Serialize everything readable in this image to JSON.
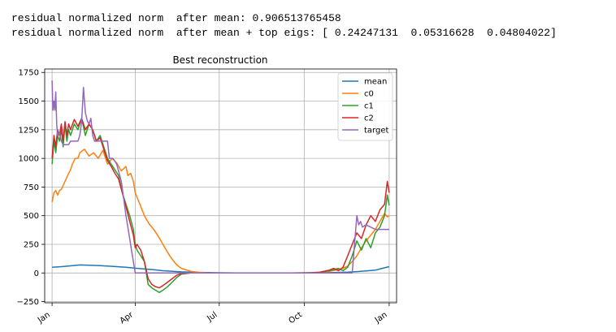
{
  "output": {
    "line1": "residual normalized norm  after mean: 0.906513765458",
    "line2": "residual normalized norm  after mean + top eigs: [ 0.24247131  0.05316628  0.04804022]"
  },
  "colors": {
    "mean": "#1f77b4",
    "c0": "#ff7f0e",
    "c1": "#2ca02c",
    "c2": "#d62728",
    "target": "#9467bd",
    "grid": "#b0b0b0"
  },
  "chart_data": {
    "type": "line",
    "title": "Best reconstruction",
    "xlabel": "",
    "ylabel": "",
    "xlim": [
      -8,
      373
    ],
    "ylim": [
      -260,
      1780
    ],
    "grid": true,
    "legend_position": "top-right",
    "xticks": [
      {
        "value": 0,
        "label": "Jan"
      },
      {
        "value": 90,
        "label": "Apr"
      },
      {
        "value": 181,
        "label": "Jul"
      },
      {
        "value": 273,
        "label": "Oct"
      },
      {
        "value": 365,
        "label": "Jan"
      }
    ],
    "yticks": [
      {
        "value": -250,
        "label": "−250"
      },
      {
        "value": 0,
        "label": "0"
      },
      {
        "value": 250,
        "label": "250"
      },
      {
        "value": 500,
        "label": "500"
      },
      {
        "value": 750,
        "label": "750"
      },
      {
        "value": 1000,
        "label": "1000"
      },
      {
        "value": 1250,
        "label": "1250"
      },
      {
        "value": 1500,
        "label": "1500"
      },
      {
        "value": 1750,
        "label": "1750"
      }
    ],
    "series": [
      {
        "name": "mean",
        "color_key": "mean",
        "x": [
          0,
          10,
          20,
          30,
          40,
          50,
          60,
          70,
          80,
          90,
          100,
          110,
          120,
          140,
          160,
          180,
          200,
          220,
          240,
          260,
          280,
          300,
          320,
          330,
          340,
          350,
          355,
          360,
          365
        ],
        "y": [
          50,
          55,
          62,
          70,
          68,
          65,
          60,
          55,
          50,
          42,
          35,
          28,
          20,
          10,
          5,
          2,
          1,
          0,
          0,
          0,
          1,
          3,
          8,
          12,
          18,
          25,
          35,
          45,
          55
        ]
      },
      {
        "name": "c0",
        "color_key": "c0",
        "x": [
          0,
          2,
          4,
          6,
          8,
          10,
          14,
          18,
          20,
          22,
          25,
          28,
          30,
          35,
          40,
          45,
          50,
          55,
          60,
          65,
          70,
          75,
          80,
          82,
          85,
          88,
          90,
          95,
          100,
          105,
          110,
          115,
          120,
          125,
          130,
          135,
          140,
          150,
          160,
          170,
          180,
          200,
          220,
          240,
          260,
          280,
          290,
          300,
          310,
          315,
          320,
          325,
          330,
          335,
          340,
          345,
          350,
          355,
          360,
          363,
          365
        ],
        "y": [
          620,
          700,
          720,
          680,
          720,
          730,
          800,
          870,
          900,
          950,
          1000,
          1000,
          1050,
          1080,
          1020,
          1050,
          1000,
          1070,
          950,
          1000,
          960,
          890,
          930,
          850,
          870,
          800,
          700,
          600,
          500,
          430,
          380,
          320,
          250,
          180,
          120,
          70,
          40,
          15,
          5,
          1,
          0,
          0,
          0,
          0,
          0,
          0,
          5,
          15,
          30,
          40,
          60,
          100,
          150,
          220,
          280,
          330,
          380,
          450,
          520,
          490,
          500
        ]
      },
      {
        "name": "c1",
        "color_key": "c1",
        "x": [
          0,
          2,
          4,
          6,
          8,
          10,
          12,
          14,
          16,
          18,
          20,
          24,
          28,
          32,
          36,
          40,
          44,
          48,
          52,
          56,
          60,
          64,
          68,
          72,
          76,
          80,
          84,
          88,
          90,
          92,
          96,
          100,
          104,
          108,
          112,
          116,
          120,
          125,
          130,
          135,
          140,
          150,
          160,
          180,
          200,
          220,
          240,
          260,
          280,
          290,
          300,
          305,
          310,
          315,
          320,
          325,
          330,
          335,
          340,
          345,
          350,
          355,
          360,
          363,
          365
        ],
        "y": [
          950,
          1150,
          1050,
          1200,
          1150,
          1250,
          1100,
          1300,
          1150,
          1250,
          1200,
          1300,
          1250,
          1350,
          1200,
          1300,
          1250,
          1150,
          1200,
          1100,
          1000,
          950,
          900,
          850,
          700,
          600,
          500,
          380,
          250,
          200,
          150,
          100,
          -100,
          -130,
          -150,
          -170,
          -150,
          -120,
          -80,
          -40,
          -10,
          0,
          0,
          0,
          0,
          0,
          0,
          0,
          2,
          5,
          20,
          30,
          40,
          20,
          50,
          150,
          280,
          200,
          300,
          220,
          350,
          400,
          500,
          680,
          590
        ]
      },
      {
        "name": "c2",
        "color_key": "c2",
        "x": [
          0,
          2,
          4,
          6,
          8,
          10,
          12,
          14,
          16,
          18,
          20,
          24,
          28,
          32,
          36,
          40,
          44,
          48,
          52,
          56,
          60,
          64,
          68,
          72,
          76,
          80,
          84,
          88,
          90,
          92,
          96,
          100,
          104,
          108,
          112,
          116,
          120,
          125,
          130,
          135,
          140,
          150,
          160,
          180,
          200,
          220,
          240,
          260,
          280,
          290,
          300,
          305,
          310,
          315,
          320,
          325,
          330,
          335,
          340,
          345,
          350,
          355,
          360,
          363,
          365
        ],
        "y": [
          1000,
          1200,
          1100,
          1250,
          1200,
          1300,
          1150,
          1320,
          1200,
          1300,
          1250,
          1340,
          1280,
          1350,
          1250,
          1300,
          1250,
          1150,
          1180,
          1080,
          980,
          930,
          870,
          820,
          700,
          580,
          450,
          330,
          220,
          250,
          200,
          100,
          -50,
          -100,
          -120,
          -130,
          -110,
          -80,
          -50,
          -20,
          -5,
          0,
          0,
          0,
          0,
          0,
          0,
          0,
          2,
          8,
          25,
          40,
          20,
          50,
          150,
          250,
          350,
          300,
          420,
          500,
          450,
          550,
          600,
          800,
          700
        ]
      },
      {
        "name": "target",
        "color_key": "target",
        "x": [
          0,
          1,
          2,
          3,
          4,
          5,
          6,
          8,
          10,
          12,
          14,
          16,
          18,
          20,
          22,
          25,
          28,
          30,
          32,
          34,
          36,
          38,
          40,
          42,
          44,
          46,
          50,
          55,
          60,
          62,
          64,
          66,
          70,
          75,
          80,
          82,
          84,
          86,
          88,
          90,
          92,
          94,
          96,
          100,
          110,
          120,
          140,
          160,
          180,
          200,
          220,
          240,
          260,
          280,
          300,
          320,
          325,
          330,
          332,
          334,
          336,
          340,
          345,
          350,
          355,
          360,
          365
        ],
        "y": [
          1680,
          1420,
          1500,
          1420,
          1580,
          1300,
          1200,
          1220,
          1150,
          1120,
          1120,
          1120,
          1120,
          1150,
          1150,
          1150,
          1150,
          1200,
          1320,
          1620,
          1400,
          1330,
          1300,
          1350,
          1200,
          1150,
          1150,
          1150,
          1150,
          1000,
          1000,
          1000,
          950,
          800,
          500,
          400,
          300,
          200,
          100,
          0,
          0,
          0,
          0,
          0,
          0,
          0,
          0,
          0,
          0,
          0,
          0,
          0,
          0,
          0,
          0,
          0,
          0,
          500,
          420,
          450,
          400,
          420,
          400,
          380,
          380,
          380,
          380
        ]
      }
    ]
  }
}
